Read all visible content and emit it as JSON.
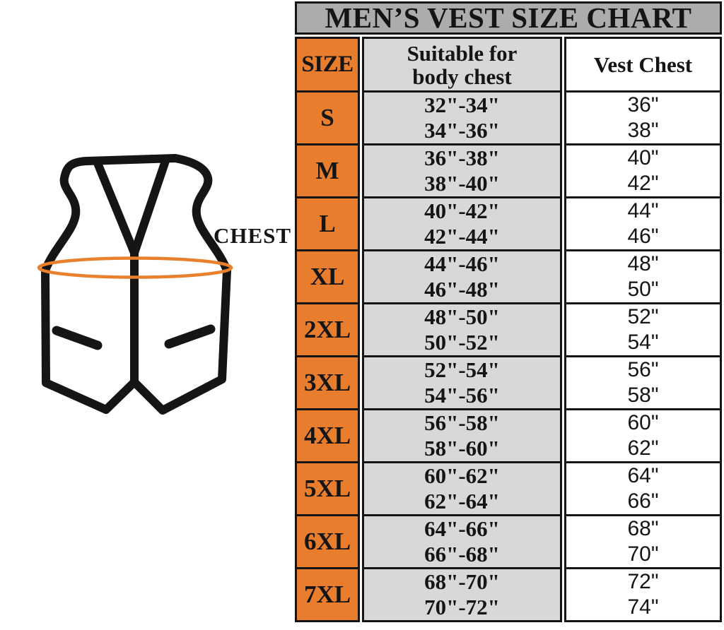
{
  "title": "MEN’S VEST SIZE CHART",
  "diagram": {
    "chest_label": "CHEST",
    "vest_icon": "vest-outline-with-chest-measurement-ellipse"
  },
  "colors": {
    "orange": "#E87D2E",
    "title_bar_gray": "#ACACAC",
    "body_chest_cell_gray": "#D8D8D8",
    "border_black": "#151515",
    "ellipse_orange": "#E8802E"
  },
  "headers": {
    "size": "SIZE",
    "body_chest_line1": "Suitable for",
    "body_chest_line2": "body chest",
    "vest_chest": "Vest Chest"
  },
  "chart_data": {
    "type": "table",
    "title": "MEN’S VEST SIZE CHART",
    "columns": [
      "SIZE",
      "Suitable for body chest",
      "Vest Chest"
    ],
    "rows": [
      {
        "size": "S",
        "body_chest": [
          "32\"-34\"",
          "34\"-36\""
        ],
        "vest_chest": [
          "36\"",
          "38\""
        ]
      },
      {
        "size": "M",
        "body_chest": [
          "36\"-38\"",
          "38\"-40\""
        ],
        "vest_chest": [
          "40\"",
          "42\""
        ]
      },
      {
        "size": "L",
        "body_chest": [
          "40\"-42\"",
          "42\"-44\""
        ],
        "vest_chest": [
          "44\"",
          "46\""
        ]
      },
      {
        "size": "XL",
        "body_chest": [
          "44\"-46\"",
          "46\"-48\""
        ],
        "vest_chest": [
          "48\"",
          "50\""
        ]
      },
      {
        "size": "2XL",
        "body_chest": [
          "48\"-50\"",
          "50\"-52\""
        ],
        "vest_chest": [
          "52\"",
          "54\""
        ]
      },
      {
        "size": "3XL",
        "body_chest": [
          "52\"-54\"",
          "54\"-56\""
        ],
        "vest_chest": [
          "56\"",
          "58\""
        ]
      },
      {
        "size": "4XL",
        "body_chest": [
          "56\"-58\"",
          "58\"-60\""
        ],
        "vest_chest": [
          "60\"",
          "62\""
        ]
      },
      {
        "size": "5XL",
        "body_chest": [
          "60\"-62\"",
          "62\"-64\""
        ],
        "vest_chest": [
          "64\"",
          "66\""
        ]
      },
      {
        "size": "6XL",
        "body_chest": [
          "64\"-66\"",
          "66\"-68\""
        ],
        "vest_chest": [
          "68\"",
          "70\""
        ]
      },
      {
        "size": "7XL",
        "body_chest": [
          "68\"-70\"",
          "70\"-72\""
        ],
        "vest_chest": [
          "72\"",
          "74\""
        ]
      }
    ]
  }
}
